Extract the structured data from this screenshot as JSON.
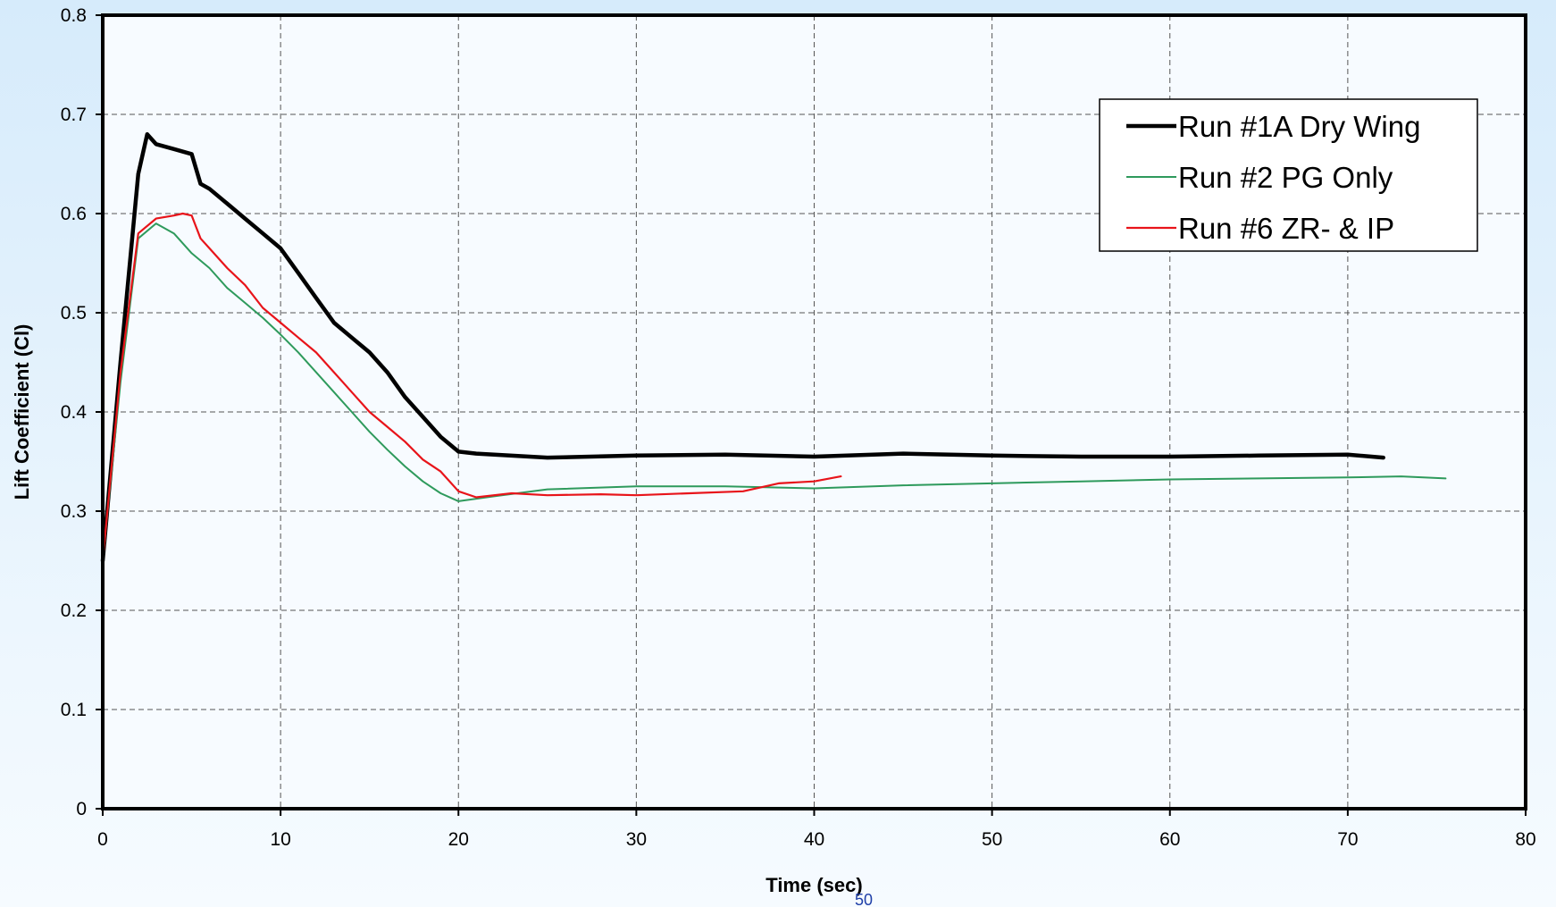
{
  "page": {
    "page_number": "50"
  },
  "chart_data": {
    "type": "line",
    "xlabel": "Time (sec)",
    "ylabel": "Lift Coefficient (Cl)",
    "xlim": [
      0,
      80
    ],
    "ylim": [
      0,
      0.8
    ],
    "x_ticks": [
      "0",
      "10",
      "20",
      "30",
      "40",
      "50",
      "60",
      "70",
      "80"
    ],
    "y_ticks": [
      "0",
      "0.1",
      "0.2",
      "0.3",
      "0.4",
      "0.5",
      "0.6",
      "0.7",
      "0.8"
    ],
    "grid": true,
    "legend_position": "top-right",
    "series": [
      {
        "name": "Run #1A Dry Wing",
        "color": "#000000",
        "x": [
          0,
          1,
          2,
          2.5,
          3,
          4,
          5,
          5.5,
          6,
          7,
          8,
          9,
          10,
          11,
          12,
          13,
          14,
          15,
          16,
          17,
          18,
          19,
          20,
          21,
          25,
          30,
          35,
          40,
          45,
          50,
          55,
          60,
          65,
          70,
          72
        ],
        "y": [
          0.25,
          0.45,
          0.64,
          0.68,
          0.67,
          0.665,
          0.66,
          0.63,
          0.625,
          0.61,
          0.595,
          0.58,
          0.565,
          0.54,
          0.515,
          0.49,
          0.475,
          0.46,
          0.44,
          0.415,
          0.395,
          0.375,
          0.36,
          0.358,
          0.354,
          0.356,
          0.357,
          0.355,
          0.358,
          0.356,
          0.355,
          0.355,
          0.356,
          0.357,
          0.354
        ]
      },
      {
        "name": "Run #2 PG Only",
        "color": "#2e9a5c",
        "x": [
          0,
          1,
          2,
          3,
          4,
          5,
          6,
          7,
          8,
          9,
          10,
          11,
          12,
          13,
          14,
          15,
          16,
          17,
          18,
          19,
          20,
          22,
          25,
          30,
          35,
          40,
          45,
          50,
          55,
          60,
          65,
          70,
          73,
          75.5
        ],
        "y": [
          0.25,
          0.43,
          0.575,
          0.59,
          0.58,
          0.56,
          0.545,
          0.525,
          0.51,
          0.495,
          0.478,
          0.46,
          0.44,
          0.42,
          0.4,
          0.38,
          0.362,
          0.345,
          0.33,
          0.318,
          0.31,
          0.315,
          0.322,
          0.325,
          0.325,
          0.323,
          0.326,
          0.328,
          0.33,
          0.332,
          0.333,
          0.334,
          0.335,
          0.333
        ]
      },
      {
        "name": "Run #6 ZR- & IP",
        "color": "#e8141a",
        "x": [
          0,
          1,
          2,
          3,
          4,
          4.5,
          5,
          5.5,
          6,
          7,
          8,
          9,
          10,
          11,
          12,
          13,
          14,
          15,
          16,
          17,
          18,
          19,
          20,
          21,
          23,
          25,
          28,
          30,
          33,
          36,
          38,
          40,
          41.5
        ],
        "y": [
          0.25,
          0.44,
          0.58,
          0.595,
          0.598,
          0.6,
          0.598,
          0.575,
          0.565,
          0.545,
          0.528,
          0.505,
          0.49,
          0.475,
          0.46,
          0.44,
          0.42,
          0.4,
          0.385,
          0.37,
          0.352,
          0.34,
          0.32,
          0.314,
          0.318,
          0.316,
          0.317,
          0.316,
          0.318,
          0.32,
          0.328,
          0.33,
          0.335
        ]
      }
    ]
  }
}
